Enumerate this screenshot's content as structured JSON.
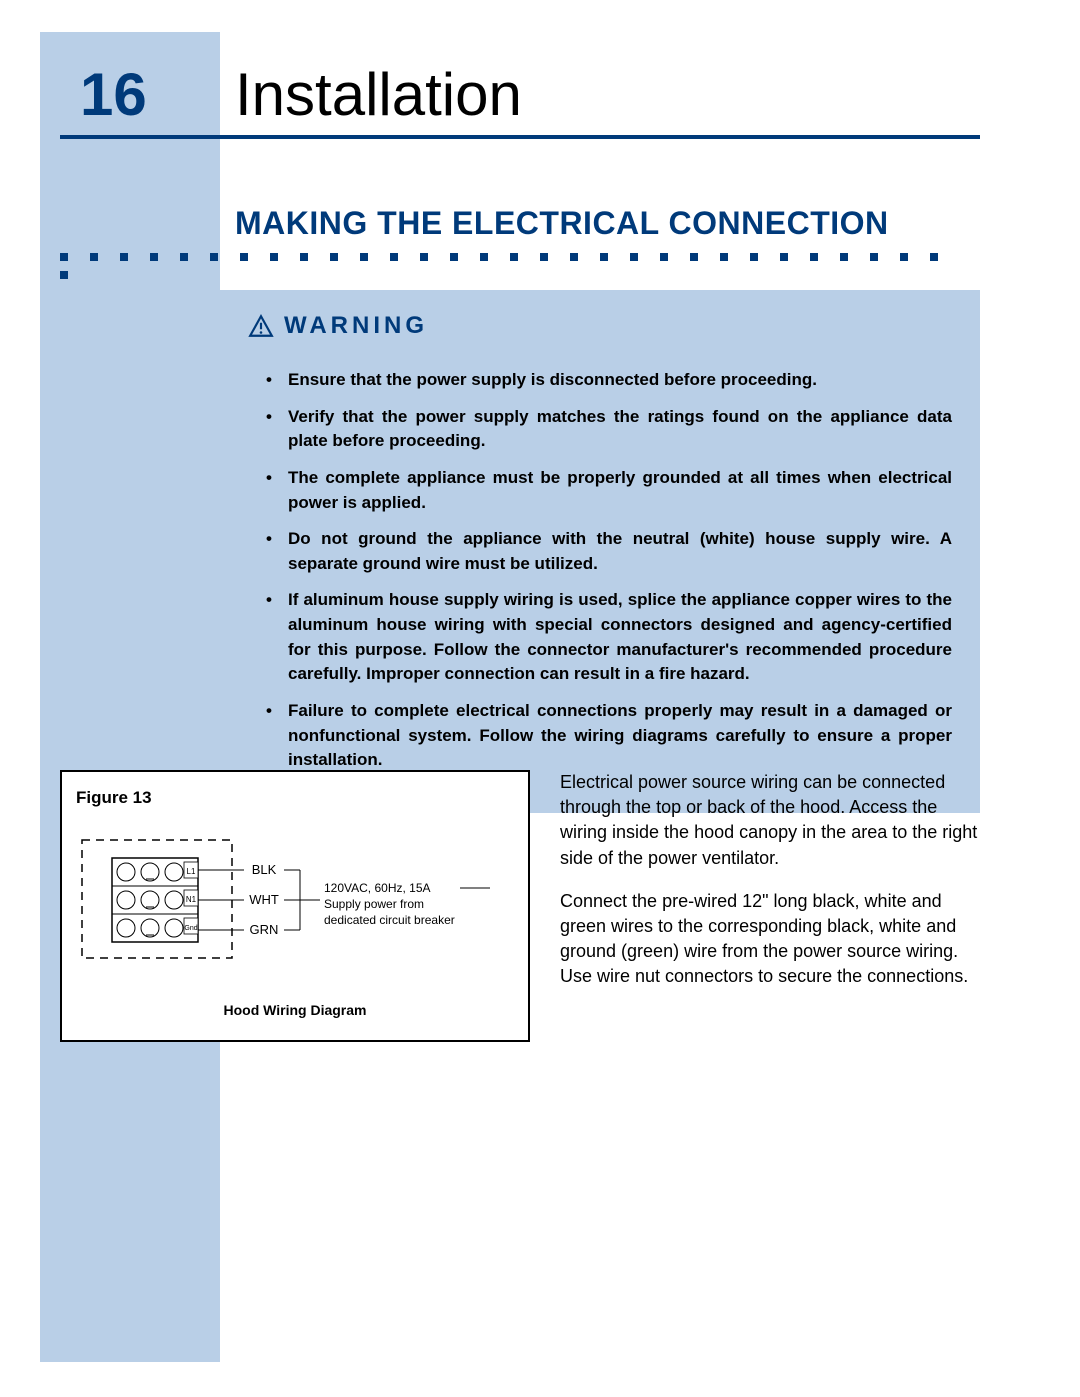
{
  "page": {
    "number": "16",
    "title": "Installation"
  },
  "section": {
    "title": "MAKING THE ELECTRICAL CONNECTION"
  },
  "colors": {
    "brand_blue": "#003a7a",
    "panel_blue": "#b9cfe7",
    "text": "#000000",
    "bg": "#ffffff"
  },
  "dots": {
    "count": 31
  },
  "warning": {
    "label": "WARNING",
    "items": [
      "Ensure that the power supply is disconnected before proceeding.",
      "Verify that the power supply matches the ratings found on the appliance data plate before proceeding.",
      "The complete appliance must be properly grounded at all times when electrical power is applied.",
      "Do not ground the appliance with the neutral (white) house supply wire. A separate ground wire must be utilized.",
      "If aluminum house supply wiring is used, splice the appliance copper wires to the aluminum house wiring with special connectors designed and agency-certified for this purpose. Follow the connector manufacturer's recommended procedure carefully. Improper connection can result in a fire hazard.",
      "Failure to complete electrical connections properly may result in a damaged or nonfunctional system. Follow the wiring diagrams carefully to ensure a proper installation."
    ]
  },
  "figure": {
    "title": "Figure 13",
    "caption": "Hood Wiring Diagram",
    "terminals": [
      {
        "id": "L1",
        "wire": "BLK"
      },
      {
        "id": "N1",
        "wire": "WHT"
      },
      {
        "id": "Gnd",
        "wire": "GRN"
      }
    ],
    "supply": {
      "line1": "120VAC, 60Hz, 15A",
      "line2": "Supply power from",
      "line3": "dedicated circuit breaker"
    }
  },
  "body": {
    "p1": "Electrical power source wiring can be connected through the top or back of the hood. Access the wiring inside the hood canopy in the area to the right side of the power ventilator.",
    "p2": "Connect the pre-wired 12\" long black, white and green wires to the corresponding black, white and ground (green) wire from the power source wiring. Use wire nut connectors to secure the connections."
  }
}
